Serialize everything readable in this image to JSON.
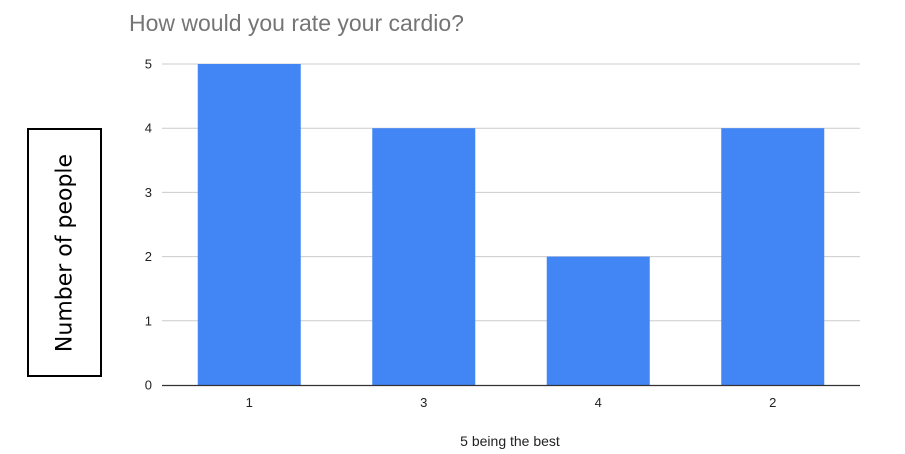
{
  "chart_data": {
    "type": "bar",
    "title": "How would you rate your cardio?",
    "xlabel": "5 being the best",
    "ylabel": "Number of people",
    "categories": [
      "1",
      "3",
      "4",
      "2"
    ],
    "values": [
      5,
      4,
      2,
      4
    ],
    "ylim": [
      0,
      5
    ],
    "yticks": [
      "0",
      "1",
      "2",
      "3",
      "4",
      "5"
    ],
    "grid": true,
    "legend": "none",
    "colors": {
      "bar": "#4285f4",
      "grid": "#cccccc",
      "axis": "#333333",
      "title": "#757575",
      "tick_text": "#222222"
    }
  }
}
